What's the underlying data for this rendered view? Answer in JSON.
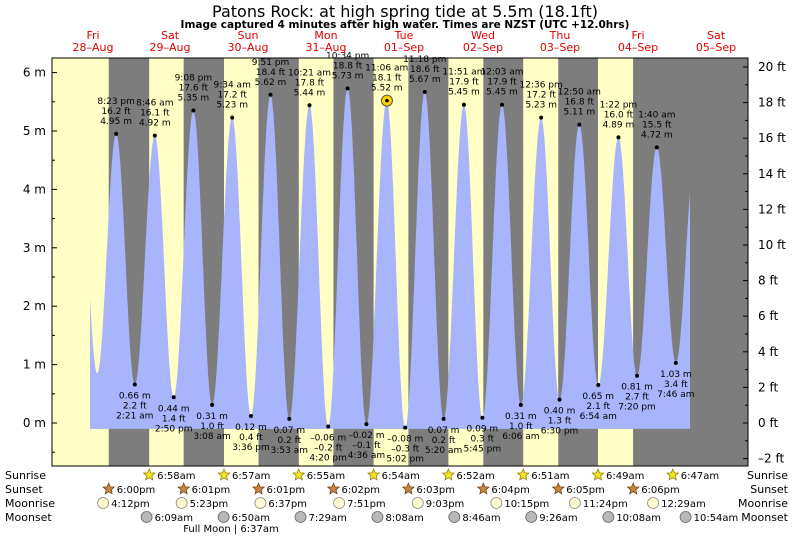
{
  "title": "Patons Rock: at high  spring tide at 5.5m (18.1ft)",
  "subtitle": "Image captured 4 minutes after high water. Times are NZST (UTC +12.0hrs)",
  "colors": {
    "water": "#a8b4fc",
    "day": "#ffffc6",
    "night": "#7d7d7d",
    "header_text": "#e00000",
    "current_marker": "#ffd000"
  },
  "days": [
    {
      "name": "Fri",
      "date": "28–Aug"
    },
    {
      "name": "Sat",
      "date": "29–Aug"
    },
    {
      "name": "Sun",
      "date": "30–Aug"
    },
    {
      "name": "Mon",
      "date": "31–Aug"
    },
    {
      "name": "Tue",
      "date": "01–Sep"
    },
    {
      "name": "Wed",
      "date": "02–Sep"
    },
    {
      "name": "Thu",
      "date": "03–Sep"
    },
    {
      "name": "Fri",
      "date": "04–Sep"
    },
    {
      "name": "Sat",
      "date": "05–Sep"
    }
  ],
  "axes": {
    "left_ticks": [
      "6 m",
      "5 m",
      "4 m",
      "3 m",
      "2 m",
      "1 m",
      "0 m"
    ],
    "right_ticks": [
      "20 ft",
      "18 ft",
      "16 ft",
      "14 ft",
      "12 ft",
      "10 ft",
      "8 ft",
      "6 ft",
      "4 ft",
      "2 ft",
      "0 ft",
      "–2 ft"
    ]
  },
  "chart_data": {
    "type": "area",
    "unit": "m",
    "x_start": "Fri 28-Aug 00:00",
    "ylim_m": [
      -0.55,
      6.4
    ],
    "current_point": {
      "time": "Tue 01-Sep 11:10",
      "value": 5.52
    },
    "tides": [
      {
        "day": 0,
        "time": "8:23 pm",
        "h": 20.38,
        "m": "4.95 m",
        "ft": "16.2 ft",
        "type": "high",
        "value": 4.95
      },
      {
        "day": 1,
        "time": "2:21 am",
        "h": 26.35,
        "m": "0.66 m",
        "ft": "2.2 ft",
        "type": "low",
        "value": 0.66
      },
      {
        "day": 1,
        "time": "8:46 am",
        "h": 32.77,
        "m": "4.92 m",
        "ft": "16.1 ft",
        "type": "high",
        "value": 4.92
      },
      {
        "day": 1,
        "time": "2:50 pm",
        "h": 38.83,
        "m": "0.44 m",
        "ft": "1.4 ft",
        "type": "low",
        "value": 0.44
      },
      {
        "day": 1,
        "time": "9:08 pm",
        "h": 45.13,
        "m": "5.35 m",
        "ft": "17.6 ft",
        "type": "high",
        "value": 5.35
      },
      {
        "day": 2,
        "time": "3:08 am",
        "h": 51.13,
        "m": "0.31 m",
        "ft": "1.0 ft",
        "type": "low",
        "value": 0.31
      },
      {
        "day": 2,
        "time": "9:34 am",
        "h": 57.57,
        "m": "5.23 m",
        "ft": "17.2 ft",
        "type": "high",
        "value": 5.23
      },
      {
        "day": 2,
        "time": "3:36 pm",
        "h": 63.6,
        "m": "0.12 m",
        "ft": "0.4 ft",
        "type": "low",
        "value": 0.12
      },
      {
        "day": 2,
        "time": "9:51 pm",
        "h": 69.85,
        "m": "5.62 m",
        "ft": "18.4 ft",
        "type": "high",
        "value": 5.62
      },
      {
        "day": 3,
        "time": "3:53 am",
        "h": 75.88,
        "m": "0.07 m",
        "ft": "0.2 ft",
        "type": "low",
        "value": 0.07
      },
      {
        "day": 3,
        "time": "10:21 am",
        "h": 82.35,
        "m": "5.44 m",
        "ft": "17.8 ft",
        "type": "high",
        "value": 5.44
      },
      {
        "day": 3,
        "time": "4:20 pm",
        "h": 88.33,
        "m": "–0.06 m",
        "ft": "–0.2 ft",
        "type": "low",
        "value": -0.06
      },
      {
        "day": 3,
        "time": "10:34 pm",
        "h": 94.57,
        "m": "5.73 m",
        "ft": "18.8 ft",
        "type": "high",
        "value": 5.73
      },
      {
        "day": 4,
        "time": "4:36 am",
        "h": 100.6,
        "m": "–0.02 m",
        "ft": "–0.1 ft",
        "type": "low",
        "value": -0.02
      },
      {
        "day": 4,
        "time": "11:06 am",
        "h": 107.1,
        "m": "5.52 m",
        "ft": "18.1 ft",
        "type": "high",
        "value": 5.52
      },
      {
        "day": 4,
        "time": "5:02 pm",
        "h": 113.03,
        "m": "–0.08 m",
        "ft": "–0.3 ft",
        "type": "low",
        "value": -0.08
      },
      {
        "day": 4,
        "time": "11:18 pm",
        "h": 119.3,
        "m": "5.67 m",
        "ft": "18.6 ft",
        "type": "high",
        "value": 5.67
      },
      {
        "day": 5,
        "time": "5:20 am",
        "h": 125.33,
        "m": "0.07 m",
        "ft": "0.2 ft",
        "type": "low",
        "value": 0.07
      },
      {
        "day": 5,
        "time": "11:51 am",
        "h": 131.85,
        "m": "5.45 m",
        "ft": "17.9 ft",
        "type": "high",
        "value": 5.45
      },
      {
        "day": 5,
        "time": "5:45 pm",
        "h": 137.75,
        "m": "0.09 m",
        "ft": "0.3 ft",
        "type": "low",
        "value": 0.09
      },
      {
        "day": 6,
        "time": "12:03 am",
        "h": 144.05,
        "m": "5.45 m",
        "ft": "17.9 ft",
        "type": "high",
        "value": 5.45
      },
      {
        "day": 6,
        "time": "6:06 am",
        "h": 150.1,
        "m": "0.31 m",
        "ft": "1.0 ft",
        "type": "low",
        "value": 0.31
      },
      {
        "day": 6,
        "time": "12:36 pm",
        "h": 156.6,
        "m": "5.23 m",
        "ft": "17.2 ft",
        "type": "high",
        "value": 5.23
      },
      {
        "day": 6,
        "time": "6:30 pm",
        "h": 162.5,
        "m": "0.40 m",
        "ft": "1.3 ft",
        "type": "low",
        "value": 0.4
      },
      {
        "day": 7,
        "time": "12:50 am",
        "h": 168.83,
        "m": "5.11 m",
        "ft": "16.8 ft",
        "type": "high",
        "value": 5.11
      },
      {
        "day": 7,
        "time": "6:54 am",
        "h": 174.9,
        "m": "0.65 m",
        "ft": "2.1 ft",
        "type": "low",
        "value": 0.65
      },
      {
        "day": 7,
        "time": "1:22 pm",
        "h": 181.37,
        "m": "4.89 m",
        "ft": "16.0 ft",
        "type": "high",
        "value": 4.89
      },
      {
        "day": 7,
        "time": "7:20 pm",
        "h": 187.33,
        "m": "0.81 m",
        "ft": "2.7 ft",
        "type": "low",
        "value": 0.81
      },
      {
        "day": 8,
        "time": "1:40 am",
        "h": 193.67,
        "m": "4.72 m",
        "ft": "15.5 ft",
        "type": "high",
        "value": 4.72
      },
      {
        "day": 8,
        "time": "7:46 am",
        "h": 199.77,
        "m": "1.03 m",
        "ft": "3.4 ft",
        "type": "low",
        "value": 1.03
      }
    ],
    "sun_moon": {
      "sunrise": [
        {
          "time": "6:58am",
          "h": 30.97
        },
        {
          "time": "6:57am",
          "h": 54.95
        },
        {
          "time": "6:55am",
          "h": 78.92
        },
        {
          "time": "6:54am",
          "h": 102.9
        },
        {
          "time": "6:52am",
          "h": 126.87
        },
        {
          "time": "6:51am",
          "h": 150.85
        },
        {
          "time": "6:49am",
          "h": 174.82
        },
        {
          "time": "6:47am",
          "h": 198.78
        }
      ],
      "sunset": [
        {
          "time": "6:00pm",
          "h": 18.0
        },
        {
          "time": "6:01pm",
          "h": 42.02
        },
        {
          "time": "6:01pm",
          "h": 66.02
        },
        {
          "time": "6:02pm",
          "h": 90.03
        },
        {
          "time": "6:03pm",
          "h": 114.05
        },
        {
          "time": "6:04pm",
          "h": 138.07
        },
        {
          "time": "6:05pm",
          "h": 162.08
        },
        {
          "time": "6:06pm",
          "h": 186.1
        }
      ],
      "moonrise": [
        {
          "time": "4:12pm",
          "h": 16.2
        },
        {
          "time": "5:23pm",
          "h": 41.38
        },
        {
          "time": "6:37pm",
          "h": 66.62
        },
        {
          "time": "7:51pm",
          "h": 91.85
        },
        {
          "time": "9:03pm",
          "h": 117.05
        },
        {
          "time": "10:15pm",
          "h": 142.25
        },
        {
          "time": "11:24pm",
          "h": 167.4
        },
        {
          "time": "12:29am",
          "h": 192.48
        }
      ],
      "moonset": [
        {
          "time": "6:09am",
          "h": 30.15
        },
        {
          "time": "6:50am",
          "h": 54.83
        },
        {
          "time": "7:29am",
          "h": 79.48
        },
        {
          "time": "8:08am",
          "h": 104.13
        },
        {
          "time": "8:46am",
          "h": 128.77
        },
        {
          "time": "9:26am",
          "h": 153.43
        },
        {
          "time": "10:08am",
          "h": 178.13
        },
        {
          "time": "10:54am",
          "h": 202.9
        }
      ]
    },
    "row_labels": [
      "Sunrise",
      "Sunset",
      "Moonrise",
      "Moonset"
    ],
    "moon_phase_note": "Full Moon | 6:37am"
  }
}
